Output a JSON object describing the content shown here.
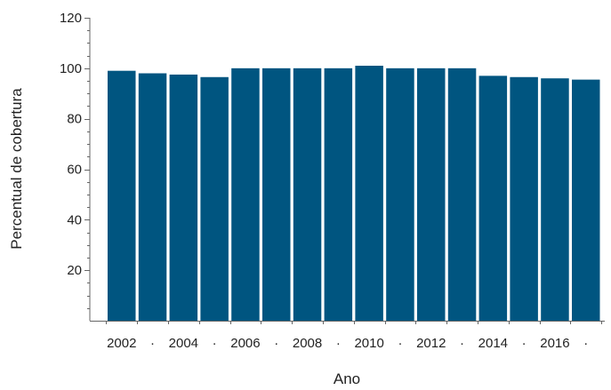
{
  "chart_data": {
    "type": "bar",
    "xlabel": "Ano",
    "ylabel": "Percentual de cobertura",
    "categories": [
      "2002",
      "2003",
      "2004",
      "2005",
      "2006",
      "2007",
      "2008",
      "2009",
      "2010",
      "2011",
      "2012",
      "2013",
      "2014",
      "2015",
      "2016",
      "2017"
    ],
    "values": [
      99,
      98,
      97.5,
      96.5,
      100,
      100,
      100,
      100,
      101,
      100,
      100,
      100,
      97,
      96.5,
      96,
      95.5
    ],
    "ylim": [
      0,
      120
    ],
    "yticks": [
      20,
      40,
      60,
      80,
      100,
      120
    ],
    "xtick_labels": [
      "2002",
      "2004",
      "2006",
      "2008",
      "2010",
      "2012",
      "2014",
      "2016"
    ],
    "xtick_separator": "·",
    "grid": false,
    "colors": {
      "bar": "#005580",
      "axis": "#666666",
      "text": "#222222"
    }
  }
}
